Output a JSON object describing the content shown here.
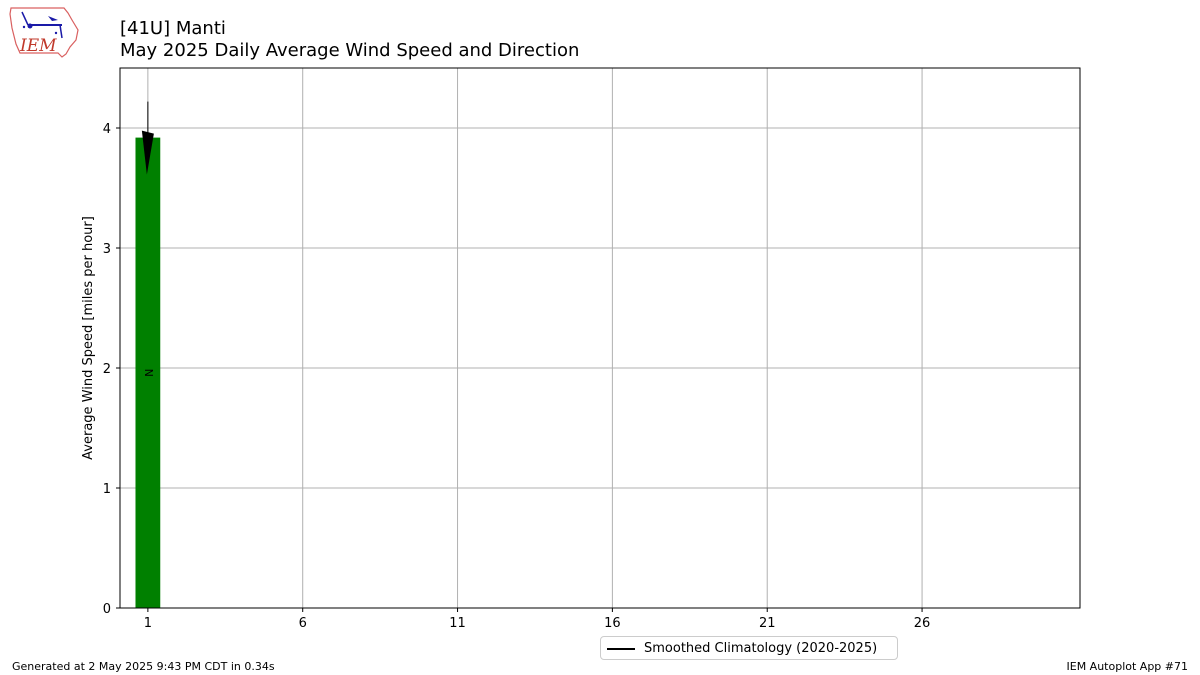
{
  "logo": {
    "text": "IEM",
    "icon": "iem-logo-icon"
  },
  "title": {
    "line1": "[41U] Manti",
    "line2": "May 2025 Daily Average Wind Speed and Direction"
  },
  "footer": {
    "left": "Generated at 2 May 2025 9:43 PM CDT in 0.34s",
    "right": "IEM Autoplot App #71"
  },
  "legend": {
    "label": "Smoothed Climatology (2020-2025)",
    "line_color": "#000000"
  },
  "colors": {
    "bar": "#008000",
    "grid": "#b0b0b0",
    "arrow": "#000000"
  },
  "chart_data": {
    "type": "bar",
    "ylabel": "Average Wind Speed [miles per hour]",
    "xlabel": "",
    "xlim": [
      0.1,
      31.1
    ],
    "ylim": [
      0,
      4.5
    ],
    "xticks": [
      1,
      6,
      11,
      16,
      21,
      26
    ],
    "yticks": [
      0,
      1,
      2,
      3,
      4
    ],
    "grid": true,
    "legend_position": "bottom-center",
    "bars": [
      {
        "day": 1,
        "speed": 3.92,
        "direction_label": "N"
      }
    ],
    "direction_arrows": [
      {
        "day": 1,
        "speed": 3.92,
        "direction": "N"
      }
    ]
  }
}
